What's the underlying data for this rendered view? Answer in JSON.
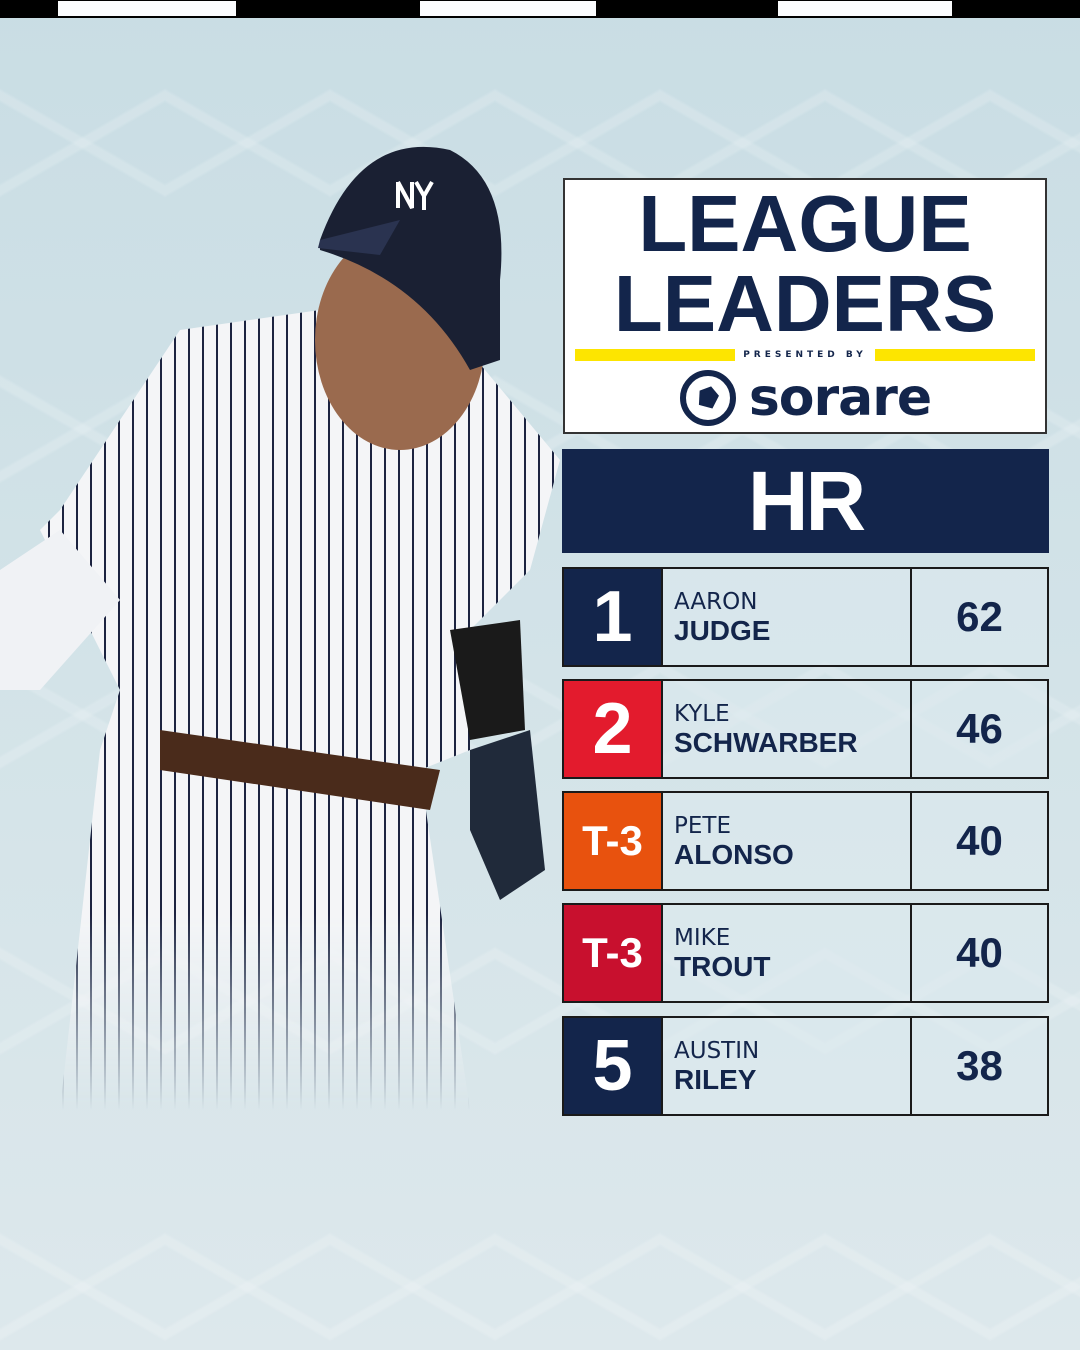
{
  "header": {
    "title_line1": "LEAGUE",
    "title_line2": "LEADERS",
    "presented_by": "PRESENTED BY",
    "sponsor": "sorare",
    "sponsor_icon": "star-circle-icon"
  },
  "stat": {
    "label": "HR"
  },
  "colors": {
    "navy": "#13254b",
    "red": "#e31b2d",
    "orange": "#e8520e",
    "dark_red": "#c8102e",
    "yellow": "#fde500"
  },
  "leaders": [
    {
      "rank": "1",
      "first": "AARON",
      "last": "JUDGE",
      "value": "62",
      "color": "#13254b"
    },
    {
      "rank": "2",
      "first": "KYLE",
      "last": "SCHWARBER",
      "value": "46",
      "color": "#e31b2d"
    },
    {
      "rank": "T-3",
      "first": "PETE",
      "last": "ALONSO",
      "value": "40",
      "color": "#e8520e"
    },
    {
      "rank": "T-3",
      "first": "MIKE",
      "last": "TROUT",
      "value": "40",
      "color": "#c8102e"
    },
    {
      "rank": "5",
      "first": "AUSTIN",
      "last": "RILEY",
      "value": "38",
      "color": "#13254b"
    }
  ]
}
